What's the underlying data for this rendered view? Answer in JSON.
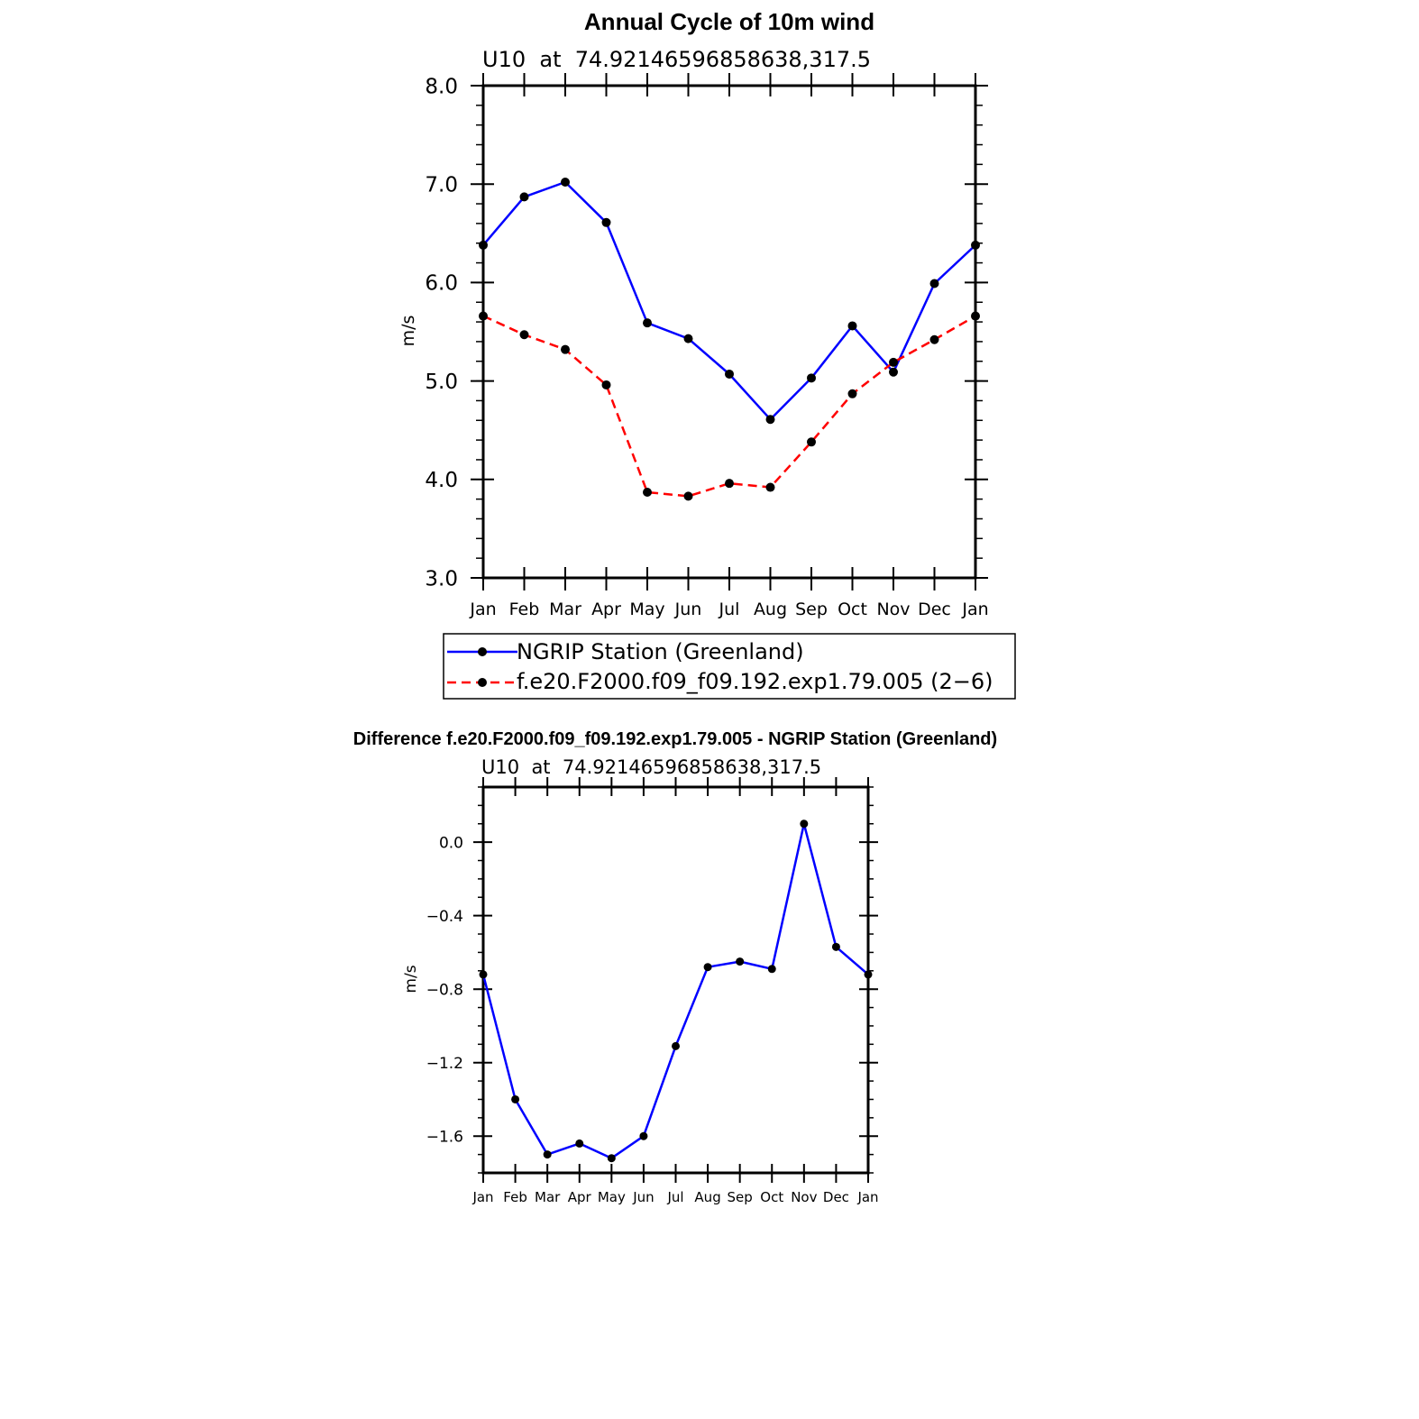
{
  "chart_data": [
    {
      "type": "line",
      "title": "Annual Cycle of 10m wind",
      "subtitle": "U10  at  74.92146596858638,317.5",
      "xlabel": "",
      "ylabel": "m/s",
      "categories": [
        "Jan",
        "Feb",
        "Mar",
        "Apr",
        "May",
        "Jun",
        "Jul",
        "Aug",
        "Sep",
        "Oct",
        "Nov",
        "Dec",
        "Jan"
      ],
      "ylim": [
        3.0,
        8.0
      ],
      "yticks": [
        "3.0",
        "4.0",
        "5.0",
        "6.0",
        "7.0",
        "8.0"
      ],
      "grid": false,
      "legend_position": "below",
      "series": [
        {
          "name": "NGRIP Station (Greenland)",
          "color": "#0000ff",
          "style": "solid",
          "values": [
            6.38,
            6.87,
            7.02,
            6.61,
            5.59,
            5.43,
            5.07,
            4.61,
            5.03,
            5.56,
            5.09,
            5.99,
            6.38
          ]
        },
        {
          "name": "f.e20.F2000.f09_f09.192.exp1.79.005 (2−6)",
          "color": "#ff0000",
          "style": "dashed",
          "values": [
            5.66,
            5.47,
            5.32,
            4.96,
            3.87,
            3.83,
            3.96,
            3.92,
            4.38,
            4.87,
            5.19,
            5.42,
            5.66
          ]
        }
      ]
    },
    {
      "type": "line",
      "title": "Difference f.e20.F2000.f09_f09.192.exp1.79.005 - NGRIP Station (Greenland)",
      "subtitle": "U10  at  74.92146596858638,317.5",
      "xlabel": "",
      "ylabel": "m/s",
      "categories": [
        "Jan",
        "Feb",
        "Mar",
        "Apr",
        "May",
        "Jun",
        "Jul",
        "Aug",
        "Sep",
        "Oct",
        "Nov",
        "Dec",
        "Jan"
      ],
      "ylim": [
        -1.8,
        0.3
      ],
      "yticks": [
        "−1.6",
        "−1.2",
        "−0.8",
        "−0.4",
        "0.0"
      ],
      "grid": false,
      "series": [
        {
          "color": "#0000ff",
          "style": "solid",
          "values": [
            -0.72,
            -1.4,
            -1.7,
            -1.64,
            -1.72,
            -1.6,
            -1.11,
            -0.68,
            -0.65,
            -0.69,
            0.1,
            -0.57,
            -0.72
          ]
        }
      ]
    }
  ]
}
